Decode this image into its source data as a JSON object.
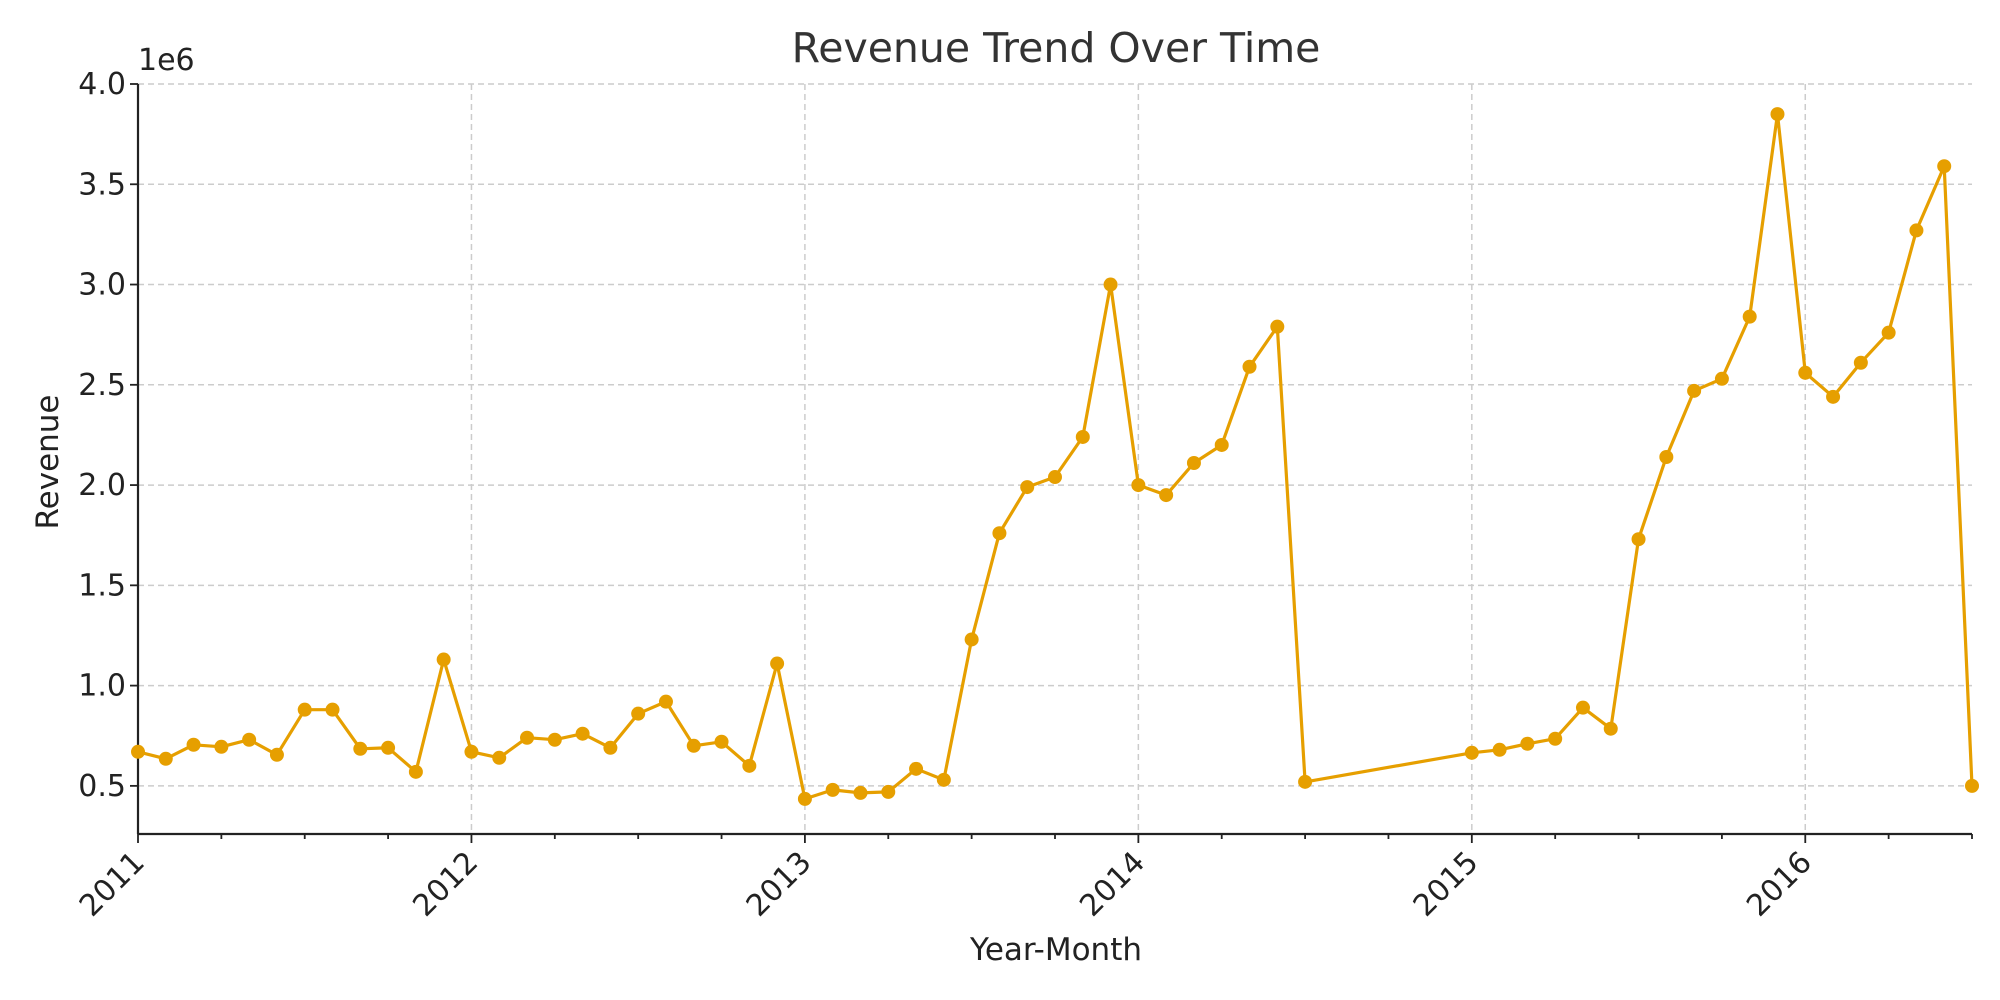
{
  "chart_data": {
    "type": "line",
    "title": "Revenue Trend Over Time",
    "xlabel": "Year-Month",
    "ylabel": "Revenue",
    "y_scale_label": "1e6",
    "y_tick_labels": [
      "0.5",
      "1.0",
      "1.5",
      "2.0",
      "2.5",
      "3.0",
      "3.5",
      "4.0"
    ],
    "y_ticks": [
      500000,
      1000000,
      1500000,
      2000000,
      2500000,
      3000000,
      3500000,
      4000000
    ],
    "x_tick_labels": [
      "2011",
      "2012",
      "2013",
      "2014",
      "2015",
      "2016"
    ],
    "ylim": [
      260000,
      4000000
    ],
    "xlim": [
      "2011-01",
      "2016-06"
    ],
    "grid": true,
    "colors": {
      "series": "#e69f00",
      "axis": "#222222",
      "grid": "#cccccc"
    },
    "series": [
      {
        "x": [
          "2011-01",
          "2011-02",
          "2011-03",
          "2011-04",
          "2011-05",
          "2011-06",
          "2011-07",
          "2011-08",
          "2011-09",
          "2011-10",
          "2011-11",
          "2011-12",
          "2012-01",
          "2012-02",
          "2012-03",
          "2012-04",
          "2012-05",
          "2012-06",
          "2012-07",
          "2012-08",
          "2012-09",
          "2012-10",
          "2012-11",
          "2012-12",
          "2013-01",
          "2013-02",
          "2013-03",
          "2013-04",
          "2013-05",
          "2013-06",
          "2013-07",
          "2013-08",
          "2013-09",
          "2013-10",
          "2013-11",
          "2013-12",
          "2014-01",
          "2014-02",
          "2014-03",
          "2014-04",
          "2014-05",
          "2014-06",
          "2014-07",
          "2015-01",
          "2015-02",
          "2015-03",
          "2015-04",
          "2015-05",
          "2015-06",
          "2015-07",
          "2015-08",
          "2015-09",
          "2015-10",
          "2015-11",
          "2015-12",
          "2016-01",
          "2016-02",
          "2016-03",
          "2016-04",
          "2016-05",
          "2016-06",
          "2016-07"
        ],
        "values": [
          670000,
          635000,
          705000,
          695000,
          730000,
          655000,
          880000,
          880000,
          685000,
          690000,
          570000,
          1130000,
          670000,
          640000,
          740000,
          730000,
          760000,
          690000,
          860000,
          920000,
          700000,
          720000,
          600000,
          1110000,
          435000,
          480000,
          465000,
          470000,
          585000,
          530000,
          1230000,
          1760000,
          1990000,
          2040000,
          2240000,
          3000000,
          2000000,
          1950000,
          2110000,
          2200000,
          2590000,
          2790000,
          520000,
          665000,
          680000,
          710000,
          735000,
          890000,
          785000,
          1730000,
          2140000,
          2470000,
          2530000,
          2840000,
          3850000,
          2560000,
          2440000,
          2610000,
          2760000,
          3270000,
          3590000,
          500000
        ]
      }
    ]
  }
}
